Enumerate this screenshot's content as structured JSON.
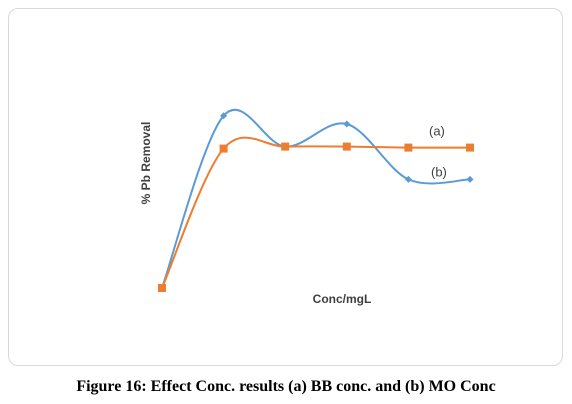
{
  "chart_data": {
    "type": "line",
    "title": "",
    "xlabel": "Conc/mgL",
    "ylabel": "% Pb Removal",
    "ylim": [
      0,
      100
    ],
    "grid": false,
    "x": [
      1,
      2,
      3,
      4,
      5,
      6
    ],
    "series": [
      {
        "name": "(b)",
        "color": "#5B9BD5",
        "marker": "diamond",
        "smooth": true,
        "values": [
          0,
          84,
          69,
          80,
          53,
          53
        ]
      },
      {
        "name": "(a)",
        "color": "#ED7D31",
        "marker": "square",
        "smooth": true,
        "values": [
          0,
          68,
          69,
          69,
          68.5,
          68.5
        ]
      }
    ]
  },
  "figure": {
    "caption": "Figure 16: Effect Conc. results (a) BB conc. and (b) MO Conc"
  }
}
